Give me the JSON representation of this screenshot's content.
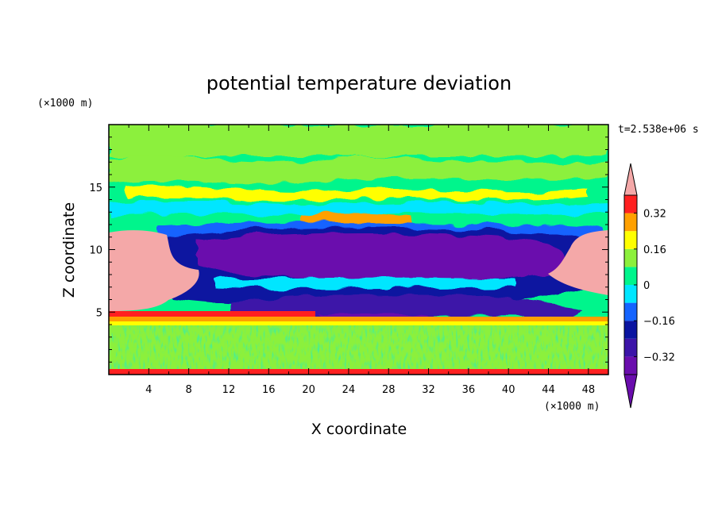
{
  "chart_data": {
    "type": "heatmap",
    "title": "potential temperature deviation",
    "xlabel": "X coordinate",
    "ylabel": "Z coordinate",
    "x_unit": "(×1000 m)",
    "y_unit": "(×1000 m)",
    "time_label": "t=2.538e+06 s",
    "xlim": [
      0,
      50
    ],
    "ylim": [
      0,
      20
    ],
    "xticks": [
      4,
      8,
      12,
      16,
      20,
      24,
      28,
      32,
      36,
      40,
      44,
      48
    ],
    "xtick_labels": [
      "4",
      "8",
      "12",
      "16",
      "20",
      "24",
      "28",
      "32",
      "36",
      "40",
      "44",
      "48"
    ],
    "yticks": [
      5,
      10,
      15
    ],
    "ytick_labels": [
      "5",
      "10",
      "15"
    ],
    "colorbar": {
      "levels": [
        -0.4,
        -0.32,
        -0.24,
        -0.16,
        -0.08,
        0,
        0.08,
        0.16,
        0.24,
        0.32,
        0.4
      ],
      "tick_values": [
        -0.32,
        -0.16,
        0,
        0.16,
        0.32
      ],
      "tick_labels": [
        "−0.32",
        "−0.16",
        "0",
        "0.16",
        "0.32"
      ],
      "colors": [
        "#6a0dad",
        "#3c14a8",
        "#0a14a0",
        "#1464ff",
        "#00e6ff",
        "#00f58c",
        "#8cf03c",
        "#ffff00",
        "#ffa000",
        "#ff2020",
        "#f4a8a8"
      ],
      "extend": "both"
    },
    "regions": [
      {
        "name": "upper-layer-background",
        "level": "0 to 0.08",
        "x_range": [
          0,
          50
        ],
        "z_range": [
          12,
          20
        ]
      },
      {
        "name": "cold-anomaly-core",
        "level": "below -0.4",
        "x_range": [
          9,
          44
        ],
        "z_range": [
          6.5,
          11
        ]
      },
      {
        "name": "warm-anomaly-left",
        "level": "above 0.4",
        "x_range": [
          0,
          9
        ],
        "z_range": [
          5.5,
          11.5
        ]
      },
      {
        "name": "warm-anomaly-right",
        "level": "above 0.4",
        "x_range": [
          44,
          50
        ],
        "z_range": [
          6.5,
          11.5
        ]
      },
      {
        "name": "boundary-layer-noise",
        "level": "-0.08 to 0.08",
        "x_range": [
          0,
          50
        ],
        "z_range": [
          0,
          4
        ]
      }
    ]
  }
}
